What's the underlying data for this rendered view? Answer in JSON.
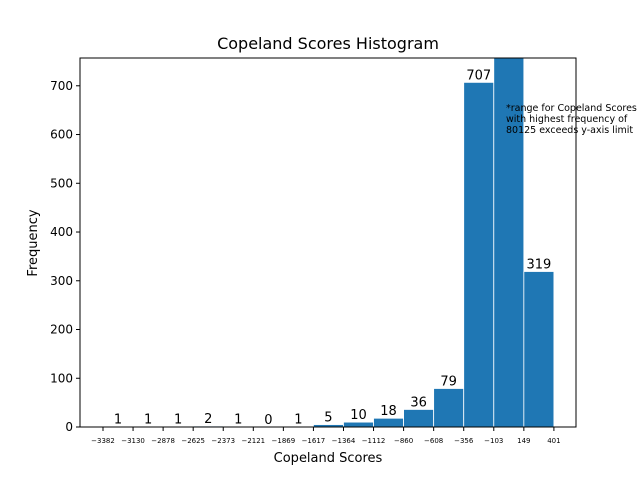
{
  "chart_data": {
    "type": "bar",
    "title": "Copeland Scores Histogram",
    "xlabel": "Copeland Scores",
    "ylabel": "Frequency",
    "ylim": [
      0,
      757
    ],
    "yticks": [
      0,
      100,
      200,
      300,
      400,
      500,
      600,
      700
    ],
    "grid": false,
    "bin_edges": [
      -3382,
      -3130,
      -2878,
      -2625,
      -2373,
      -2121,
      -1869,
      -1617,
      -1364,
      -1112,
      -860,
      -608,
      -356,
      -103,
      149,
      401
    ],
    "bin_edge_labels": [
      "−3382",
      "−3130",
      "−2878",
      "−2625",
      "−2373",
      "−2121",
      "−1869",
      "−1617",
      "−1364",
      "−1112",
      "−860",
      "−608",
      "−356",
      "−103",
      "149",
      "401"
    ],
    "values": [
      1,
      1,
      1,
      2,
      1,
      0,
      1,
      5,
      10,
      18,
      36,
      79,
      707,
      80125,
      319
    ],
    "data_labels": [
      "1",
      "1",
      "1",
      "2",
      "1",
      "0",
      "1",
      "5",
      "10",
      "18",
      "36",
      "79",
      "707",
      "",
      "319"
    ],
    "bar_color": "#1f77b4",
    "annotation": [
      "*range for Copeland Scores",
      "with highest frequency of",
      "80125 exceeds y-axis limit"
    ]
  }
}
